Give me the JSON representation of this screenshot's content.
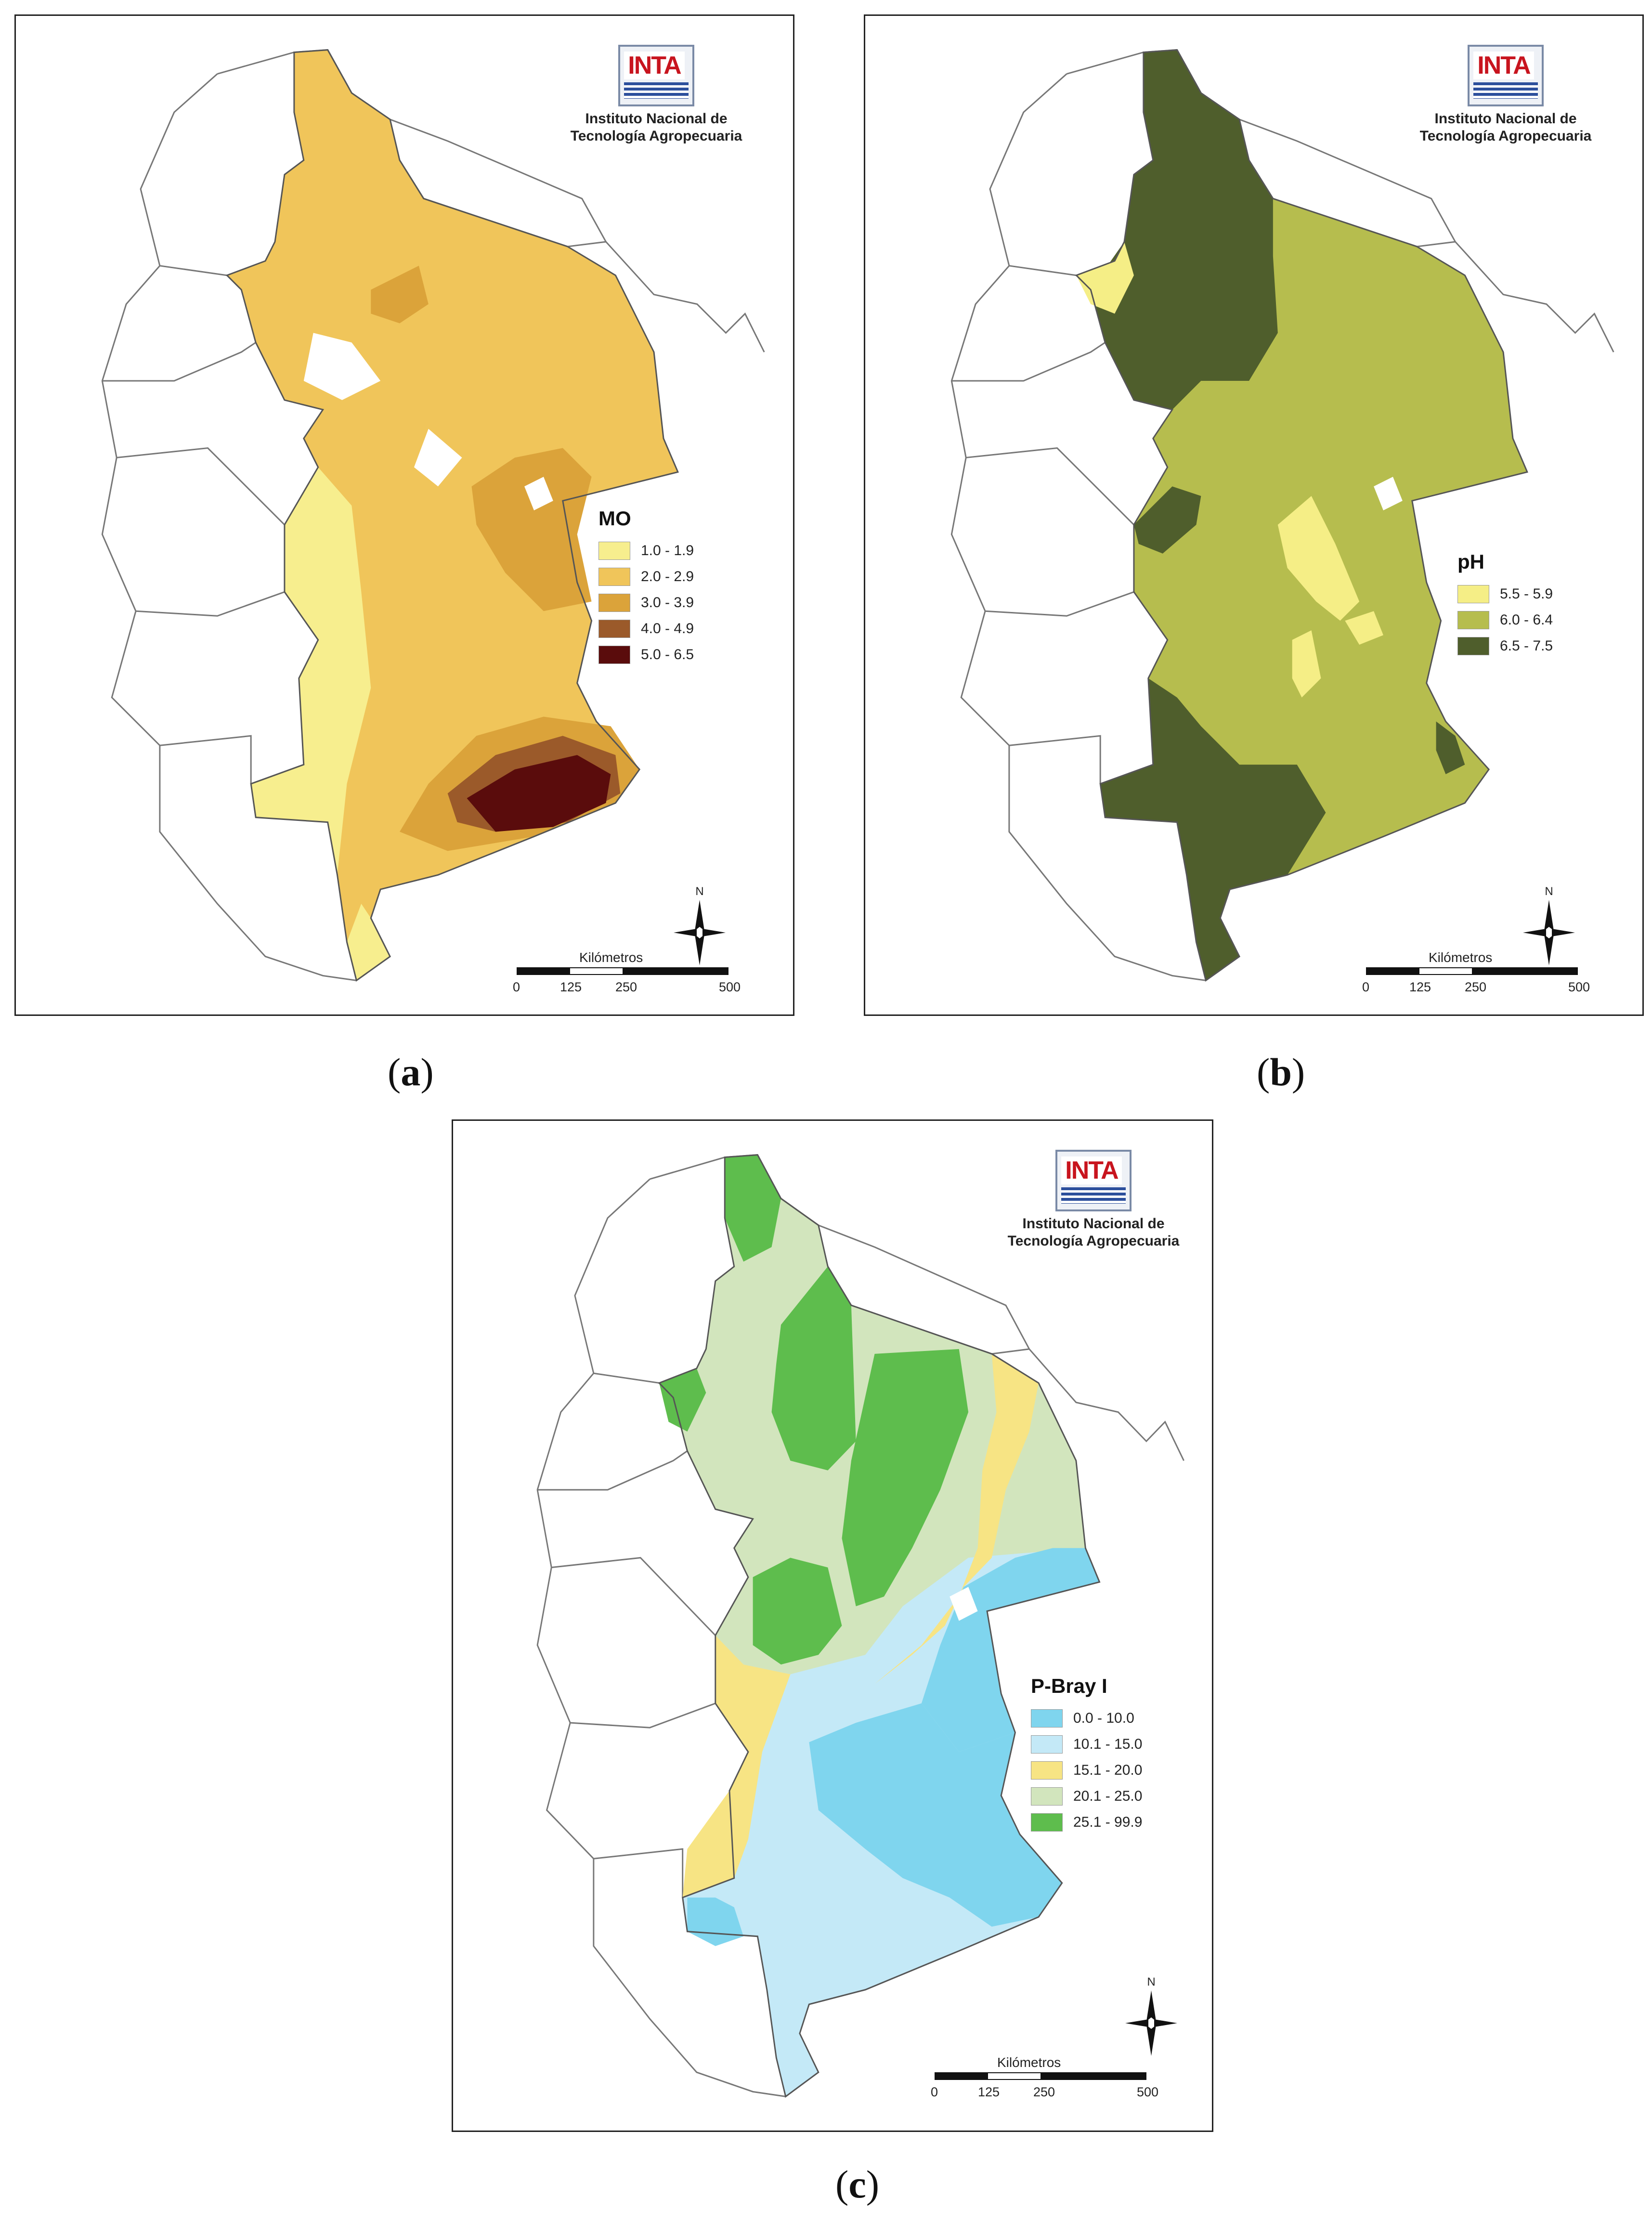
{
  "logo": {
    "word": "INTA",
    "line1": "Instituto Nacional de",
    "line2": "Tecnología Agropecuaria"
  },
  "scale": {
    "title": "Kilómetros",
    "ticks": [
      "0",
      "125",
      "250",
      "500"
    ]
  },
  "north_label": "N",
  "panels": {
    "a": {
      "caption_letter": "a",
      "legend_title": "MO",
      "legend": [
        {
          "label": "1.0 - 1.9",
          "color": "#f7ee8e"
        },
        {
          "label": "2.0 - 2.9",
          "color": "#f0c55a"
        },
        {
          "label": "3.0 - 3.9",
          "color": "#dba33a"
        },
        {
          "label": "4.0 - 4.9",
          "color": "#9b5a2a"
        },
        {
          "label": "5.0 - 6.5",
          "color": "#5a0c0c"
        }
      ]
    },
    "b": {
      "caption_letter": "b",
      "legend_title": "pH",
      "legend": [
        {
          "label": "5.5 - 5.9",
          "color": "#f5ee86"
        },
        {
          "label": "6.0 - 6.4",
          "color": "#b6bd4e"
        },
        {
          "label": "6.5 - 7.5",
          "color": "#4f5e2c"
        }
      ]
    },
    "c": {
      "caption_letter": "c",
      "legend_title": "P-Bray I",
      "legend": [
        {
          "label": "0.0 - 10.0",
          "color": "#7fd5ee"
        },
        {
          "label": "10.1 - 15.0",
          "color": "#c4e9f7"
        },
        {
          "label": "15.1 - 20.0",
          "color": "#f7e484"
        },
        {
          "label": "20.1 - 25.0",
          "color": "#d2e5bd"
        },
        {
          "label": "25.1 - 99.9",
          "color": "#5ebd4d"
        }
      ]
    }
  }
}
